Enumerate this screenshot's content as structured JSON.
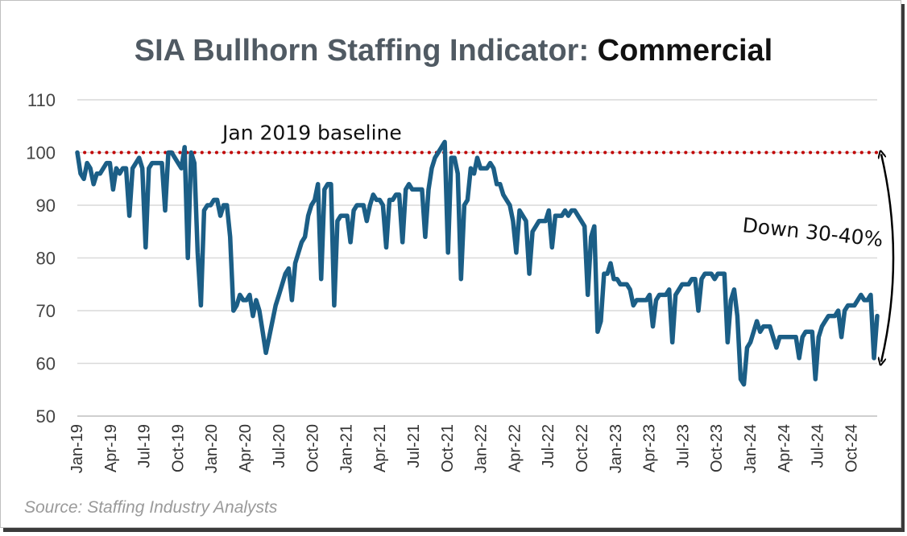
{
  "title": {
    "prefix": "SIA Bullhorn Staffing Indicator: ",
    "emphasis": "Commercial"
  },
  "source": "Source: Staffing Industry Analysts",
  "colors": {
    "line": "#1b5e86",
    "baseline": "#c00000",
    "grid": "#d9d9d9",
    "arrow": "#000000"
  },
  "annotations": {
    "baseline_label": "Jan 2019 baseline",
    "decline_label": "Down 30-40%"
  },
  "chart_data": {
    "type": "line",
    "title": "SIA Bullhorn Staffing Indicator: Commercial",
    "xlabel": "",
    "ylabel": "",
    "ylim": [
      50,
      110
    ],
    "yticks": [
      50,
      60,
      70,
      80,
      90,
      100,
      110
    ],
    "grid": "horizontal",
    "x_tick_labels": [
      "Jan-19",
      "Apr-19",
      "Jul-19",
      "Oct-19",
      "Jan-20",
      "Apr-20",
      "Jul-20",
      "Oct-20",
      "Jan-21",
      "Apr-21",
      "Jul-21",
      "Oct-21",
      "Jan-22",
      "Apr-22",
      "Jul-22",
      "Oct-22",
      "Jan-23",
      "Apr-23",
      "Jul-23",
      "Oct-23",
      "Jan-24",
      "Apr-24",
      "Jul-24",
      "Oct-24"
    ],
    "baseline": {
      "label": "Jan 2019 baseline",
      "value": 100
    },
    "decline_annotation": {
      "label": "Down 30-40%",
      "from": 100,
      "to": 60
    },
    "series": [
      {
        "values": [
          100,
          96,
          95,
          98,
          97,
          94,
          96,
          96,
          97,
          98,
          98,
          93,
          97,
          96,
          97,
          97,
          88,
          97,
          98,
          99,
          97,
          82,
          97,
          98,
          98,
          98,
          98,
          89,
          100,
          100,
          99,
          98,
          97,
          101,
          80,
          100,
          98,
          81,
          71,
          89,
          90,
          90,
          91,
          91,
          88,
          90,
          90,
          84,
          70,
          71,
          73,
          72,
          72,
          73,
          69,
          72,
          70,
          66,
          62,
          65,
          68,
          71,
          73,
          75,
          77,
          78,
          72,
          79,
          81,
          83,
          84,
          88,
          90,
          91,
          94,
          76,
          93,
          94,
          94,
          71,
          87,
          88,
          88,
          88,
          83,
          89,
          90,
          90,
          90,
          87,
          90,
          92,
          91,
          91,
          90,
          82,
          91,
          91,
          92,
          92,
          83,
          93,
          94,
          93,
          93,
          93,
          93,
          84,
          93,
          97,
          99,
          100,
          101,
          102,
          81,
          99,
          99,
          96,
          76,
          90,
          91,
          97,
          96,
          99,
          97,
          97,
          97,
          98,
          97,
          94,
          94,
          92,
          91,
          90,
          87,
          81,
          89,
          88,
          87,
          77,
          85,
          86,
          87,
          87,
          87,
          89,
          82,
          88,
          88,
          88,
          89,
          88,
          89,
          89,
          88,
          87,
          86,
          73,
          84,
          86,
          66,
          68,
          77,
          77,
          79,
          76,
          76,
          75,
          75,
          75,
          74,
          71,
          72,
          72,
          72,
          72,
          73,
          67,
          72,
          73,
          73,
          73,
          74,
          64,
          73,
          74,
          75,
          75,
          75,
          76,
          76,
          70,
          76,
          77,
          77,
          77,
          76,
          77,
          77,
          77,
          64,
          72,
          74,
          69,
          57,
          56,
          63,
          64,
          66,
          68,
          66,
          67,
          67,
          67,
          65,
          63,
          65,
          65,
          65,
          65,
          65,
          65,
          61,
          65,
          66,
          66,
          66,
          57,
          65,
          67,
          68,
          69,
          69,
          69,
          70,
          65,
          70,
          71,
          71,
          71,
          72,
          73,
          72,
          72,
          73,
          61,
          69
        ]
      }
    ]
  }
}
